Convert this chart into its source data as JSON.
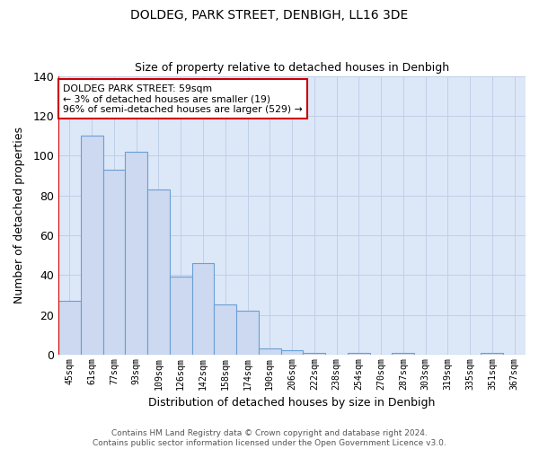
{
  "title": "DOLDEG, PARK STREET, DENBIGH, LL16 3DE",
  "subtitle": "Size of property relative to detached houses in Denbigh",
  "xlabel": "Distribution of detached houses by size in Denbigh",
  "ylabel": "Number of detached properties",
  "bin_labels": [
    "45sqm",
    "61sqm",
    "77sqm",
    "93sqm",
    "109sqm",
    "126sqm",
    "142sqm",
    "158sqm",
    "174sqm",
    "190sqm",
    "206sqm",
    "222sqm",
    "238sqm",
    "254sqm",
    "270sqm",
    "287sqm",
    "303sqm",
    "319sqm",
    "335sqm",
    "351sqm",
    "367sqm"
  ],
  "bar_heights": [
    27,
    110,
    93,
    102,
    83,
    39,
    46,
    25,
    22,
    3,
    2,
    1,
    0,
    1,
    0,
    1,
    0,
    0,
    0,
    1,
    0
  ],
  "bar_color": "#ccd9f0",
  "bar_edge_color": "#6b9fd4",
  "grid_color": "#c0cfe8",
  "background_color": "#dce8f8",
  "annotation_text": "DOLDEG PARK STREET: 59sqm\n← 3% of detached houses are smaller (19)\n96% of semi-detached houses are larger (529) →",
  "annotation_box_color": "#ffffff",
  "annotation_box_edge": "#cc0000",
  "ylim": [
    0,
    140
  ],
  "yticks": [
    0,
    20,
    40,
    60,
    80,
    100,
    120,
    140
  ],
  "footer": "Contains HM Land Registry data © Crown copyright and database right 2024.\nContains public sector information licensed under the Open Government Licence v3.0."
}
